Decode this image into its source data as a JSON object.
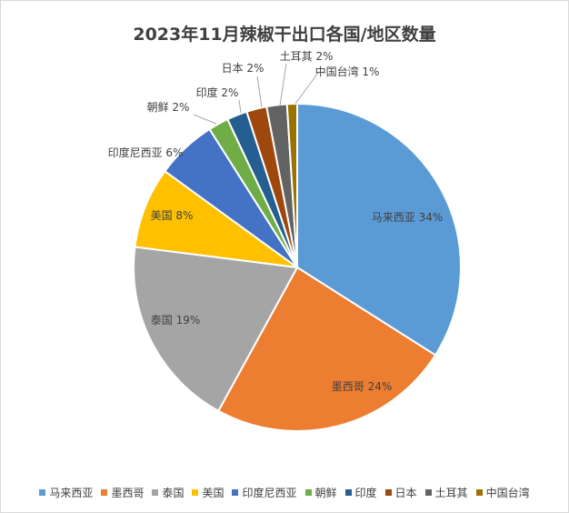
{
  "chart_data": {
    "type": "pie",
    "title": "2023年11月辣椒干出口各国/地区数量",
    "legend_position": "bottom",
    "slices": [
      {
        "label": "马来西亚",
        "value": 34,
        "value_label": "34%",
        "color": "#5B9BD5"
      },
      {
        "label": "墨西哥",
        "value": 24,
        "value_label": "24%",
        "color": "#ED7D31"
      },
      {
        "label": "泰国",
        "value": 19,
        "value_label": "19%",
        "color": "#A5A5A5"
      },
      {
        "label": "美国",
        "value": 8,
        "value_label": "8%",
        "color": "#FFC000"
      },
      {
        "label": "印度尼西亚",
        "value": 6,
        "value_label": "6%",
        "color": "#4472C4"
      },
      {
        "label": "朝鲜",
        "value": 2,
        "value_label": "2%",
        "color": "#70AD47"
      },
      {
        "label": "印度",
        "value": 2,
        "value_label": "2%",
        "color": "#255E91"
      },
      {
        "label": "日本",
        "value": 2,
        "value_label": "2%",
        "color": "#9E480E"
      },
      {
        "label": "土耳其",
        "value": 2,
        "value_label": "2%",
        "color": "#636363"
      },
      {
        "label": "中国台湾",
        "value": 1,
        "value_label": "1%",
        "color": "#997300"
      }
    ]
  }
}
